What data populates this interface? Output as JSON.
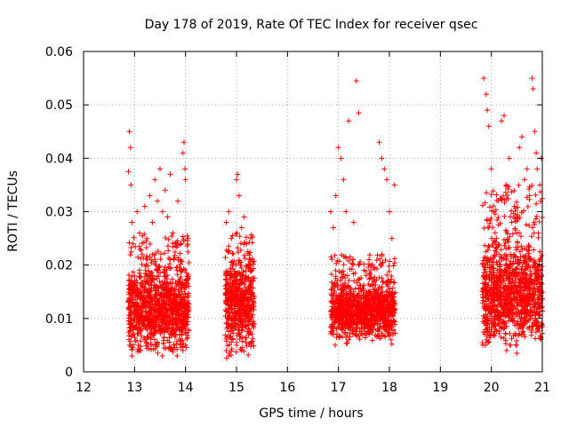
{
  "chart_data": {
    "type": "scatter",
    "title": "Day 178 of 2019, Rate Of TEC Index for receiver qsec",
    "xlabel": "GPS time / hours",
    "ylabel": "ROTI / TECUs",
    "xlim": [
      12,
      21
    ],
    "ylim": [
      0,
      0.06
    ],
    "xticks": [
      12,
      13,
      14,
      15,
      16,
      17,
      18,
      19,
      20,
      21
    ],
    "yticks": [
      0,
      0.01,
      0.02,
      0.03,
      0.04,
      0.05,
      0.06
    ],
    "xtick_labels": [
      "12",
      "13",
      "14",
      "15",
      "16",
      "17",
      "18",
      "19",
      "20",
      "21"
    ],
    "ytick_labels": [
      "0",
      "0.01",
      "0.02",
      "0.03",
      "0.04",
      "0.05",
      "0.06"
    ],
    "grid": true,
    "marker": "+",
    "color": "#ff0000",
    "series": [
      {
        "name": "ROTI",
        "points": [
          [
            12.88,
            0.0375
          ],
          [
            12.9,
            0.045
          ],
          [
            12.92,
            0.042
          ],
          [
            12.93,
            0.035
          ],
          [
            12.95,
            0.028
          ],
          [
            12.97,
            0.024
          ],
          [
            13.0,
            0.018
          ],
          [
            13.05,
            0.03
          ],
          [
            13.1,
            0.026
          ],
          [
            13.15,
            0.022
          ],
          [
            13.2,
            0.031
          ],
          [
            13.25,
            0.021
          ],
          [
            13.3,
            0.033
          ],
          [
            13.35,
            0.028
          ],
          [
            13.4,
            0.036
          ],
          [
            13.45,
            0.032
          ],
          [
            13.5,
            0.038
          ],
          [
            13.55,
            0.03
          ],
          [
            13.6,
            0.034
          ],
          [
            13.65,
            0.029
          ],
          [
            13.7,
            0.037
          ],
          [
            13.75,
            0.026
          ],
          [
            13.8,
            0.024
          ],
          [
            13.85,
            0.032
          ],
          [
            13.9,
            0.021
          ],
          [
            13.95,
            0.041
          ],
          [
            13.97,
            0.043
          ],
          [
            13.99,
            0.038
          ],
          [
            14.0,
            0.036
          ],
          [
            14.05,
            0.025
          ],
          [
            12.9,
            0.005
          ],
          [
            12.95,
            0.003
          ],
          [
            13.1,
            0.004
          ],
          [
            13.4,
            0.005
          ],
          [
            13.95,
            0.004
          ],
          [
            14.0,
            0.005
          ],
          [
            14.8,
            0.028
          ],
          [
            14.85,
            0.03
          ],
          [
            14.9,
            0.025
          ],
          [
            15.0,
            0.036
          ],
          [
            15.02,
            0.037
          ],
          [
            15.05,
            0.033
          ],
          [
            15.1,
            0.027
          ],
          [
            15.15,
            0.029
          ],
          [
            15.2,
            0.024
          ],
          [
            15.25,
            0.021
          ],
          [
            15.3,
            0.019
          ],
          [
            14.8,
            0.004
          ],
          [
            14.85,
            0.003
          ],
          [
            15.0,
            0.005
          ],
          [
            15.1,
            0.004
          ],
          [
            16.85,
            0.03
          ],
          [
            16.9,
            0.027
          ],
          [
            16.95,
            0.033
          ],
          [
            17.0,
            0.042
          ],
          [
            17.05,
            0.04
          ],
          [
            17.1,
            0.036
          ],
          [
            17.15,
            0.03
          ],
          [
            17.2,
            0.047
          ],
          [
            17.3,
            0.028
          ],
          [
            17.35,
            0.0545
          ],
          [
            17.4,
            0.0485
          ],
          [
            17.5,
            0.019
          ],
          [
            17.6,
            0.021
          ],
          [
            17.7,
            0.017
          ],
          [
            17.8,
            0.043
          ],
          [
            17.85,
            0.04
          ],
          [
            17.9,
            0.038
          ],
          [
            17.95,
            0.036
          ],
          [
            18.0,
            0.03
          ],
          [
            18.05,
            0.025
          ],
          [
            18.1,
            0.035
          ],
          [
            18.1,
            0.011
          ],
          [
            16.9,
            0.007
          ],
          [
            17.2,
            0.006
          ],
          [
            17.6,
            0.007
          ],
          [
            18.0,
            0.007
          ],
          [
            19.85,
            0.055
          ],
          [
            19.9,
            0.052
          ],
          [
            19.92,
            0.049
          ],
          [
            19.95,
            0.046
          ],
          [
            20.0,
            0.038
          ],
          [
            20.05,
            0.03
          ],
          [
            20.1,
            0.025
          ],
          [
            20.15,
            0.022
          ],
          [
            20.2,
            0.047
          ],
          [
            20.25,
            0.048
          ],
          [
            20.3,
            0.035
          ],
          [
            20.35,
            0.04
          ],
          [
            20.4,
            0.028
          ],
          [
            20.45,
            0.031
          ],
          [
            20.5,
            0.026
          ],
          [
            20.55,
            0.042
          ],
          [
            20.6,
            0.044
          ],
          [
            20.65,
            0.036
          ],
          [
            20.7,
            0.038
          ],
          [
            20.75,
            0.033
          ],
          [
            20.8,
            0.055
          ],
          [
            20.82,
            0.053
          ],
          [
            20.85,
            0.045
          ],
          [
            20.88,
            0.041
          ],
          [
            20.9,
            0.038
          ],
          [
            20.95,
            0.035
          ],
          [
            20.98,
            0.04
          ],
          [
            19.9,
            0.006
          ],
          [
            20.3,
            0.004
          ],
          [
            20.5,
            0.0035
          ],
          [
            20.9,
            0.008
          ]
        ],
        "clusters": [
          {
            "x_range": [
              12.88,
              14.07
            ],
            "y_range": [
              0.004,
              0.026
            ],
            "count": 1100,
            "peak": 0.012,
            "spread": 0.006
          },
          {
            "x_range": [
              14.78,
              15.35
            ],
            "y_range": [
              0.003,
              0.026
            ],
            "count": 550,
            "peak": 0.013,
            "spread": 0.006
          },
          {
            "x_range": [
              16.85,
              18.12
            ],
            "y_range": [
              0.006,
              0.022
            ],
            "count": 1100,
            "peak": 0.0115,
            "spread": 0.004
          },
          {
            "x_range": [
              19.82,
              21.0
            ],
            "y_range": [
              0.006,
              0.035
            ],
            "count": 1100,
            "peak": 0.014,
            "spread": 0.007
          }
        ]
      }
    ]
  }
}
